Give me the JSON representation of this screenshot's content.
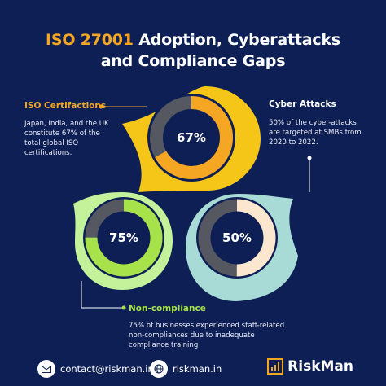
{
  "title": {
    "highlight": "ISO 27001",
    "line1_rest": " Adoption, Cyberattacks",
    "line2": "and Compliance Gaps"
  },
  "sections": {
    "iso": {
      "heading": "ISO Certifactions",
      "body": "Japan, India, and the UK constitute 67% of the total global ISO certifications.",
      "value_label": "67%",
      "value": 0.67,
      "color": "#f5a623"
    },
    "cyber": {
      "heading": "Cyber Attacks",
      "body": "50% of the cyber-attacks are targeted at SMBs from 2020 to 2022.",
      "value_label": "50%",
      "value": 0.5,
      "color": "#fbe7d0"
    },
    "noncompliance": {
      "heading": "Non-compliance",
      "body": "75% of businesses experienced staff-related non-compliances due to inadequate compliance training",
      "value_label": "75%",
      "value": 0.75,
      "color": "#a7e24a"
    }
  },
  "footer": {
    "email": "contact@riskman.in",
    "website": "riskman.in",
    "email_icon": "mail-icon",
    "web_icon": "globe-icon",
    "brand_name": "RiskMan",
    "brand_color": "#f5a623"
  }
}
